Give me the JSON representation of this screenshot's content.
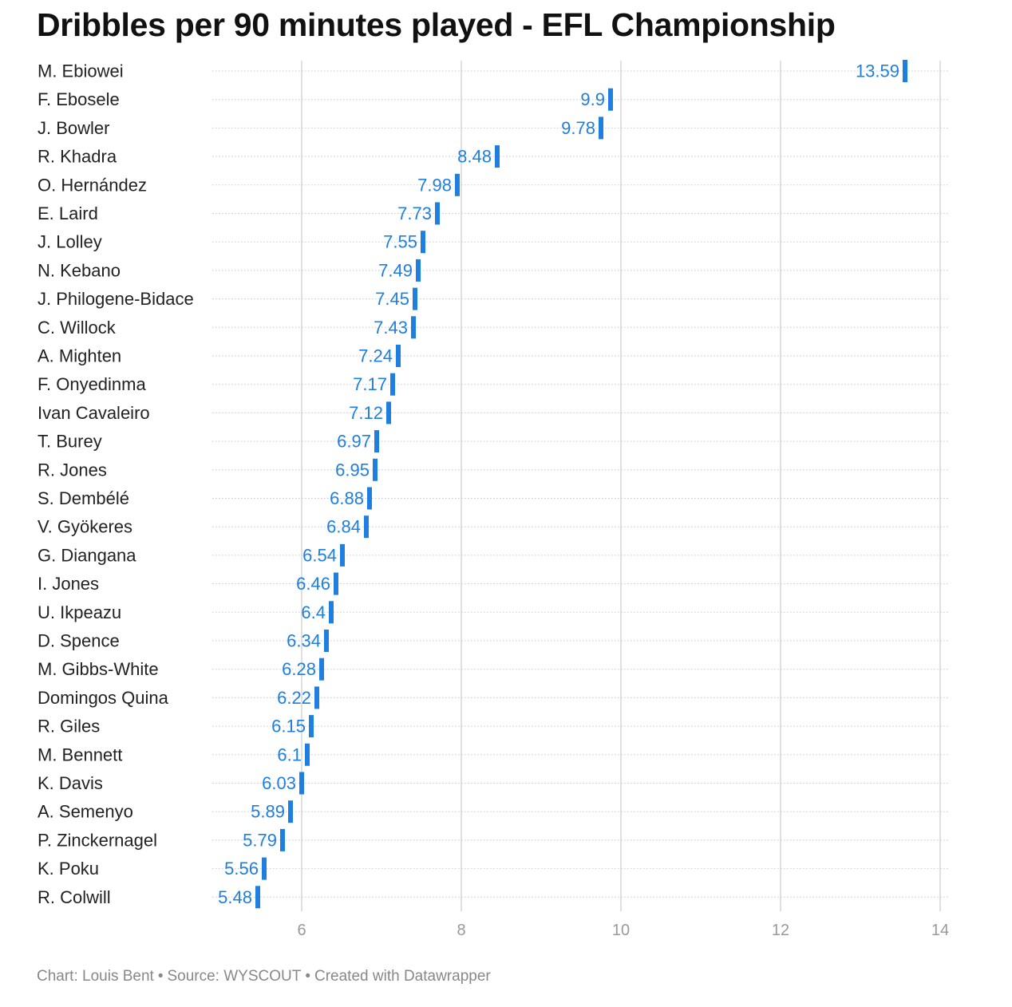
{
  "header": {
    "title": "Dribbles per 90 minutes played - EFL Championship"
  },
  "footer": {
    "credit": "Chart: Louis Bent",
    "source": "Source: WYSCOUT",
    "tool": "Created with Datawrapper",
    "separator": "•"
  },
  "colors": {
    "accent": "#1f7fe0",
    "label": "#222222",
    "grid": "#e0e0e0",
    "tick": "#999999"
  },
  "chart_data": {
    "type": "bar",
    "orientation": "horizontal",
    "title": "Dribbles per 90 minutes played - EFL Championship",
    "xlim": [
      4.9,
      14.2
    ],
    "xticks": [
      6,
      8,
      10,
      12,
      14
    ],
    "grid": true,
    "categories": [
      "M. Ebiowei",
      "F. Ebosele",
      "J. Bowler",
      "R. Khadra",
      "O. Hernández",
      "E. Laird",
      "J. Lolley",
      "N. Kebano",
      "J. Philogene-Bidace",
      "C. Willock",
      "A. Mighten",
      "F. Onyedinma",
      "Ivan Cavaleiro",
      "T. Burey",
      "R. Jones",
      "S. Dembélé",
      "V. Gyökeres",
      "G. Diangana",
      "I. Jones",
      "U. Ikpeazu",
      "D. Spence",
      "M. Gibbs-White",
      "Domingos Quina",
      "R. Giles",
      "M. Bennett",
      "K. Davis",
      "A. Semenyo",
      "P. Zinckernagel",
      "K. Poku",
      "R. Colwill"
    ],
    "values": [
      13.59,
      9.9,
      9.78,
      8.48,
      7.98,
      7.73,
      7.55,
      7.49,
      7.45,
      7.43,
      7.24,
      7.17,
      7.12,
      6.97,
      6.95,
      6.88,
      6.84,
      6.54,
      6.46,
      6.4,
      6.34,
      6.28,
      6.22,
      6.15,
      6.1,
      6.03,
      5.89,
      5.79,
      5.56,
      5.48
    ]
  }
}
